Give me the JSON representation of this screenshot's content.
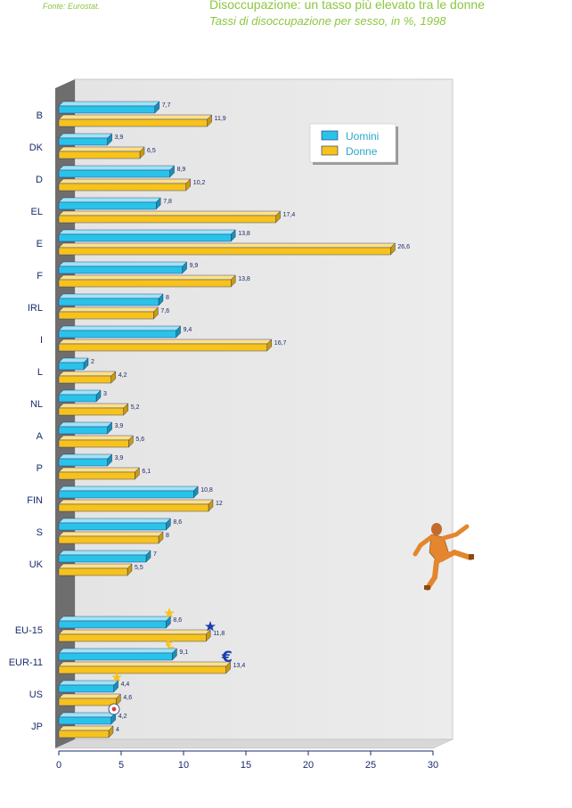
{
  "source": "Fonte: Eurostat.",
  "title": "Disoccupazione: un tasso più elevato tra le donne",
  "subtitle": "Tassi di disoccupazione per sesso, in %, 1998",
  "colors": {
    "uomini": "#29c3ea",
    "donne": "#f7c21b",
    "axis_text": "#1a2a6c",
    "title": "#8cc63f"
  },
  "chart_data": {
    "type": "bar",
    "orientation": "horizontal",
    "categories": [
      "B",
      "DK",
      "D",
      "EL",
      "E",
      "F",
      "IRL",
      "I",
      "L",
      "NL",
      "A",
      "P",
      "FIN",
      "S",
      "UK",
      "EU-15",
      "EUR-11",
      "US",
      "JP"
    ],
    "series": [
      {
        "name": "Uomini",
        "values": [
          7.7,
          3.9,
          8.9,
          7.8,
          13.8,
          9.9,
          8,
          9.4,
          2,
          3,
          3.9,
          3.9,
          10.8,
          8.6,
          7,
          8.6,
          9.1,
          4.4,
          4.2
        ]
      },
      {
        "name": "Donne",
        "values": [
          11.9,
          6.5,
          10.2,
          17.4,
          26.6,
          13.8,
          7.6,
          16.7,
          4.2,
          5.2,
          5.6,
          6.1,
          12,
          8,
          5.5,
          11.8,
          13.4,
          4.6,
          4
        ]
      }
    ],
    "value_labels": {
      "Uomini": [
        "7,7",
        "3,9",
        "8,9",
        "7,8",
        "13,8",
        "9,9",
        "8",
        "9,4",
        "2",
        "3",
        "3,9",
        "3,9",
        "10,8",
        "8,6",
        "7",
        "8,6",
        "9,1",
        "4,4",
        "4,2"
      ],
      "Donne": [
        "11,9",
        "6,5",
        "10,2",
        "17,4",
        "26,6",
        "13,8",
        "7,6",
        "16,7",
        "4,2",
        "5,2",
        "5,6",
        "6,1",
        "12",
        "8",
        "5,5",
        "11,8",
        "13,4",
        "4,6",
        "4"
      ]
    },
    "xlim": [
      0,
      30
    ],
    "xticks": [
      0,
      5,
      10,
      15,
      20,
      25,
      30
    ],
    "legend": {
      "position": "top-right",
      "entries": [
        "Uomini",
        "Donne"
      ]
    },
    "grid": false
  }
}
